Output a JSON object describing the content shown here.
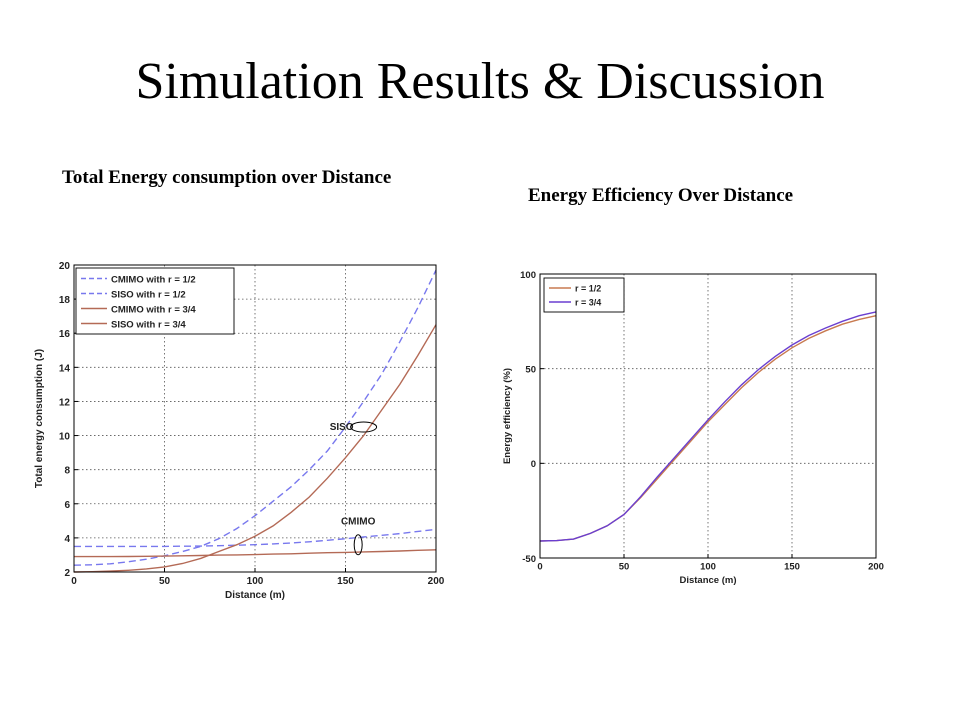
{
  "slide": {
    "title": "Simulation Results & Discussion",
    "left_caption": "Total Energy consumption over Distance",
    "right_caption": "Energy Efficiency Over Distance"
  },
  "chart_data": [
    {
      "type": "line",
      "title": "",
      "xlabel": "Distance (m)",
      "ylabel": "Total energy consumption (J)",
      "xlim": [
        0,
        200
      ],
      "ylim": [
        2,
        20
      ],
      "xticks": [
        0,
        50,
        100,
        150,
        200
      ],
      "yticks": [
        2,
        4,
        6,
        8,
        10,
        12,
        14,
        16,
        18,
        20
      ],
      "grid": true,
      "legend_position": "top-left",
      "x": [
        0,
        10,
        20,
        30,
        40,
        50,
        60,
        70,
        80,
        90,
        100,
        110,
        120,
        130,
        140,
        150,
        160,
        170,
        180,
        190,
        200
      ],
      "series": [
        {
          "name": "CMIMO with r = 1/2",
          "style": "dashed",
          "color": "#7878ee",
          "values": [
            3.5,
            3.5,
            3.5,
            3.5,
            3.5,
            3.5,
            3.51,
            3.52,
            3.54,
            3.57,
            3.6,
            3.65,
            3.7,
            3.77,
            3.86,
            3.95,
            4.05,
            4.15,
            4.25,
            4.38,
            4.5
          ]
        },
        {
          "name": "SISO with r = 1/2",
          "style": "dashed",
          "color": "#7878ee",
          "values": [
            2.4,
            2.42,
            2.48,
            2.6,
            2.75,
            2.95,
            3.2,
            3.5,
            3.95,
            4.55,
            5.3,
            6.15,
            7.0,
            8.0,
            9.1,
            10.5,
            12.0,
            13.6,
            15.5,
            17.5,
            19.7
          ]
        },
        {
          "name": "CMIMO with r = 3/4",
          "style": "solid",
          "color": "#b46a56",
          "values": [
            2.9,
            2.9,
            2.9,
            2.91,
            2.92,
            2.93,
            2.95,
            2.97,
            2.99,
            3.0,
            3.02,
            3.05,
            3.07,
            3.1,
            3.13,
            3.15,
            3.18,
            3.2,
            3.23,
            3.27,
            3.3
          ]
        },
        {
          "name": "SISO with r = 3/4",
          "style": "solid",
          "color": "#b46a56",
          "values": [
            2.0,
            2.02,
            2.05,
            2.1,
            2.18,
            2.3,
            2.5,
            2.8,
            3.2,
            3.6,
            4.1,
            4.7,
            5.5,
            6.4,
            7.5,
            8.7,
            10.0,
            11.5,
            13.0,
            14.7,
            16.5
          ]
        }
      ],
      "annotations": [
        {
          "text": "SISO",
          "x": 160,
          "y": 10.5
        },
        {
          "text": "CMIMO",
          "x": 157,
          "y": 3.6
        }
      ]
    },
    {
      "type": "line",
      "title": "",
      "xlabel": "Distance (m)",
      "ylabel": "Energy efficiency (%)",
      "xlim": [
        0,
        200
      ],
      "ylim": [
        -50,
        100
      ],
      "xticks": [
        0,
        50,
        100,
        150,
        200
      ],
      "yticks": [
        -50,
        0,
        50,
        100
      ],
      "grid": true,
      "legend_position": "top-left",
      "x": [
        0,
        10,
        20,
        30,
        40,
        50,
        60,
        70,
        80,
        90,
        100,
        110,
        120,
        130,
        140,
        150,
        160,
        170,
        180,
        190,
        200
      ],
      "series": [
        {
          "name": "r = 1/2",
          "color": "#c87a50",
          "values": [
            -41,
            -40.8,
            -40,
            -37,
            -33,
            -27,
            -18,
            -8,
            2,
            12,
            22,
            31,
            40,
            48,
            55,
            61,
            66,
            70,
            73.5,
            76,
            78
          ]
        },
        {
          "name": "r = 3/4",
          "color": "#6a3fd0",
          "values": [
            -41,
            -40.8,
            -40,
            -37,
            -33,
            -27,
            -17.5,
            -7,
            3,
            13,
            23,
            32.5,
            41.5,
            49.5,
            56.5,
            62.5,
            67.5,
            71.5,
            75,
            78,
            80
          ]
        }
      ]
    }
  ]
}
